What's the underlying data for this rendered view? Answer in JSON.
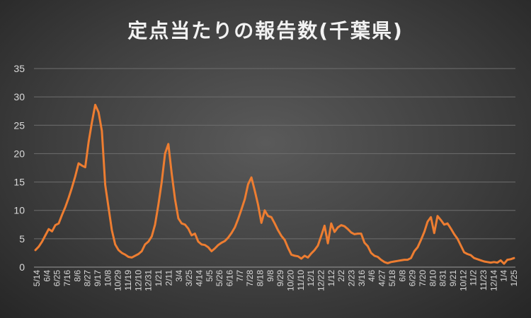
{
  "chart_data": {
    "type": "line",
    "title": "定点当たりの報告数(千葉県)",
    "xlabel": "",
    "ylabel": "",
    "ylim": [
      0,
      35
    ],
    "yticks": [
      0,
      5,
      10,
      15,
      20,
      25,
      30,
      35
    ],
    "grid": true,
    "legend": "none",
    "x_tick_labels": [
      "5/14",
      "6/4",
      "6/25",
      "7/16",
      "8/6",
      "8/27",
      "9/17",
      "10/8",
      "10/29",
      "11/19",
      "12/10",
      "12/31",
      "1/21",
      "2/11",
      "3/4",
      "3/25",
      "4/14",
      "5/5",
      "5/26",
      "6/16",
      "7/7",
      "7/28",
      "8/18",
      "9/8",
      "9/29",
      "10/20",
      "11/10",
      "12/1",
      "12/22",
      "1/12",
      "2/2",
      "2/23",
      "3/16",
      "4/6",
      "4/27",
      "5/18",
      "6/8",
      "6/29",
      "7/20",
      "8/10",
      "8/31",
      "9/21",
      "10/12",
      "11/2",
      "11/23",
      "12/14",
      "1/4",
      "1/25"
    ],
    "series": [
      {
        "color": "#ed7d31",
        "values": [
          3.0,
          3.6,
          4.5,
          5.6,
          6.7,
          6.3,
          7.4,
          7.7,
          9.2,
          10.6,
          12.2,
          14.0,
          16.0,
          18.3,
          17.9,
          17.6,
          22.0,
          25.5,
          28.6,
          27.3,
          24.0,
          14.5,
          10.5,
          6.5,
          4.0,
          3.0,
          2.5,
          2.2,
          1.8,
          1.7,
          2.0,
          2.3,
          2.8,
          4.0,
          4.5,
          5.4,
          7.5,
          11.0,
          15.0,
          20.0,
          21.7,
          16.5,
          12.0,
          8.6,
          7.7,
          7.5,
          6.8,
          5.6,
          5.9,
          4.5,
          4.0,
          3.9,
          3.5,
          2.8,
          3.3,
          3.9,
          4.3,
          4.6,
          5.2,
          6.0,
          7.0,
          8.5,
          10.2,
          12.0,
          14.6,
          15.8,
          13.5,
          11.0,
          7.8,
          10.0,
          9.0,
          8.8,
          7.7,
          6.5,
          5.5,
          4.8,
          3.4,
          2.2,
          2.0,
          1.9,
          1.5,
          2.0,
          1.7,
          2.4,
          3.0,
          3.8,
          5.5,
          7.3,
          4.2,
          7.7,
          6.2,
          7.0,
          7.4,
          7.2,
          6.7,
          6.1,
          5.8,
          5.9,
          5.9,
          4.3,
          3.7,
          2.5,
          2.0,
          1.8,
          1.3,
          0.9,
          0.7,
          0.9,
          1.0,
          1.1,
          1.2,
          1.3,
          1.3,
          1.6,
          2.8,
          3.5,
          4.8,
          6.2,
          8.0,
          8.8,
          6.0,
          9.0,
          8.3,
          7.5,
          7.7,
          6.8,
          5.8,
          5.0,
          3.8,
          2.6,
          2.3,
          2.1,
          1.6,
          1.4,
          1.2,
          1.0,
          0.9,
          0.8,
          0.9,
          0.8,
          1.2,
          0.6,
          1.3,
          1.4,
          1.6
        ]
      }
    ]
  }
}
